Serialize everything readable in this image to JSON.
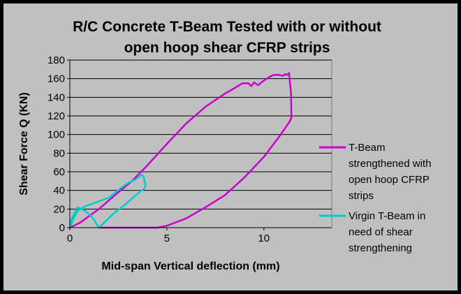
{
  "chart_data": {
    "type": "line",
    "title_lines": [
      "R/C Concrete T-Beam Tested with or without",
      "open hoop shear CFRP strips"
    ],
    "xlabel": "Mid-span Vertical deflection (mm)",
    "ylabel": "Shear Force Q (KN)",
    "xlim": [
      0,
      13.5
    ],
    "ylim": [
      0,
      180
    ],
    "xticks": [
      0,
      5,
      10
    ],
    "yticks": [
      0,
      20,
      40,
      60,
      80,
      100,
      120,
      140,
      160,
      180
    ],
    "grid": "horizontal",
    "legend_position": "right",
    "series": [
      {
        "name_lines": [
          "T-Beam",
          "strengthened with",
          "open hoop CFRP",
          "strips"
        ],
        "color": "#cc00cc",
        "x": [
          0,
          0.5,
          1.5,
          2.5,
          3.2,
          4.0,
          5.0,
          6.0,
          7.0,
          8.0,
          8.5,
          8.9,
          9.2,
          9.35,
          9.5,
          9.7,
          10.0,
          10.3,
          10.5,
          10.8,
          11.0,
          11.1,
          11.2,
          11.3,
          11.4,
          11.42,
          11.3,
          10.8,
          10.0,
          9.0,
          8.0,
          7.0,
          6.0,
          5.0,
          4.5,
          4.0,
          3.6,
          3.0,
          2.0,
          1.5
        ],
        "y": [
          0,
          5,
          20,
          38,
          50,
          67,
          90,
          112,
          130,
          144,
          150,
          155,
          155,
          152,
          156,
          153,
          158,
          162,
          164,
          164,
          163,
          165,
          164,
          166,
          144,
          118,
          113,
          98,
          76,
          54,
          35,
          22,
          10,
          2,
          0,
          0,
          0,
          0,
          0,
          0
        ]
      },
      {
        "name_lines": [
          "Virgin T-Beam in",
          "need of shear",
          "strengthening"
        ],
        "color": "#00cccc",
        "x": [
          0,
          0.15,
          0.4,
          0.8,
          1.2,
          1.6,
          2.0,
          2.3,
          2.6,
          3.0,
          3.4,
          3.7,
          3.8,
          3.85,
          3.9,
          3.85,
          3.7,
          3.3,
          2.8,
          2.3,
          1.9,
          1.6,
          1.5,
          1.2,
          0.8,
          0.4,
          0.1,
          0
        ],
        "y": [
          0,
          8,
          18,
          23,
          26,
          29,
          32,
          37,
          42,
          48,
          52,
          57,
          55,
          50,
          46,
          42,
          40,
          33,
          24,
          16,
          8,
          2,
          0,
          10,
          18,
          22,
          10,
          2
        ]
      }
    ]
  }
}
